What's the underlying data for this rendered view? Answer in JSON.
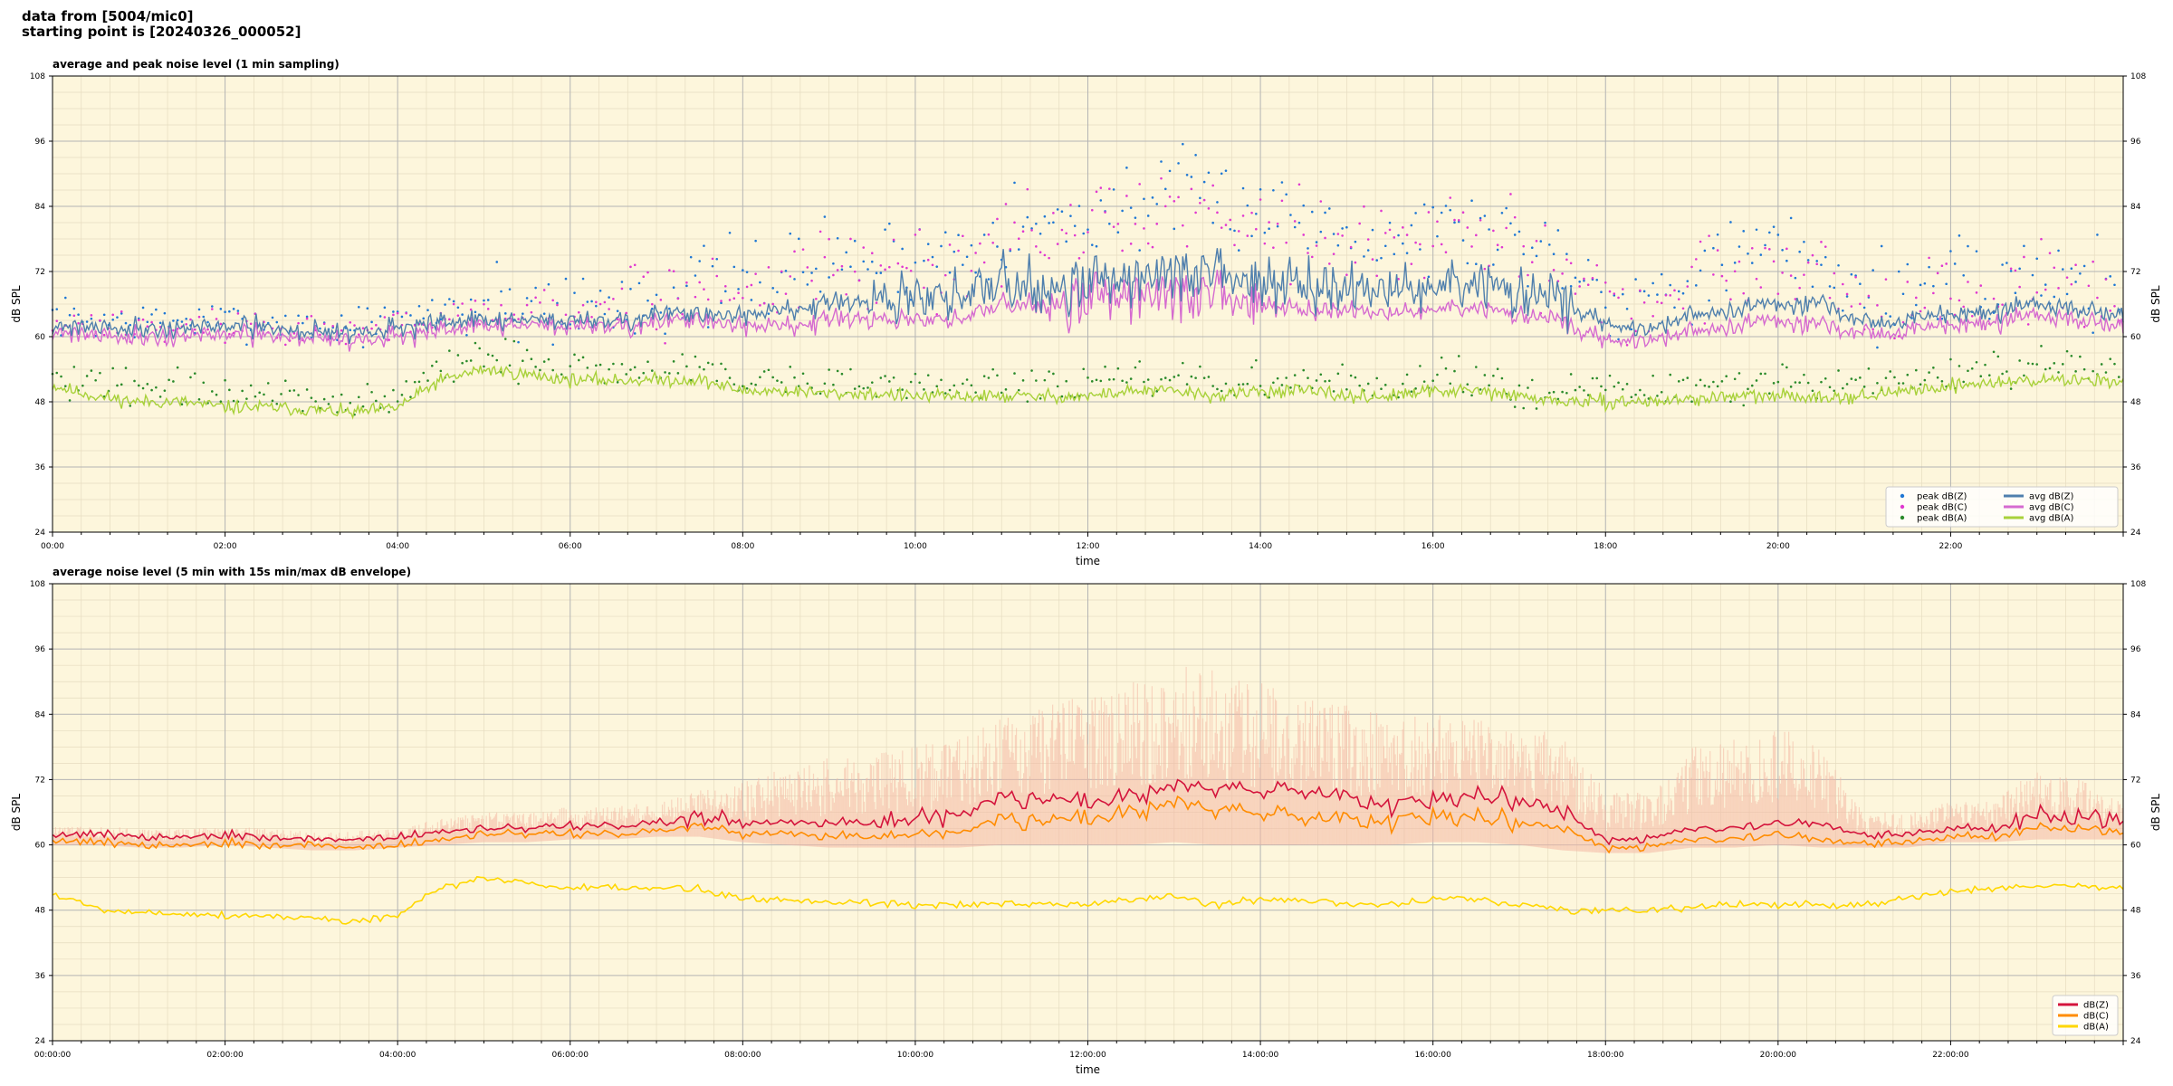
{
  "header": {
    "line1": "data from [5004/mic0]",
    "line2": "starting point is [20240326_000052]"
  },
  "colors": {
    "background": "#fdf6dc",
    "peak_z": "#1f77d4",
    "peak_c": "#e038d0",
    "peak_a": "#2a8a2a",
    "avg_z": "#4f7fad",
    "avg_c": "#d56ad0",
    "avg_a": "#a8d13a",
    "z": "#d4143c",
    "c": "#ff8c00",
    "a": "#ffd700",
    "envelope": "#f4b8a4"
  },
  "chart_data": [
    {
      "type": "line",
      "title": "average and peak noise level (1 min sampling)",
      "xlabel": "time",
      "ylabel": "dB SPL",
      "xlim": [
        0,
        24
      ],
      "ylim": [
        24,
        108
      ],
      "yticks": [
        "24",
        "36",
        "48",
        "60",
        "72",
        "84",
        "96",
        "108"
      ],
      "xtick_labels": [
        "00:00",
        "02:00",
        "04:00",
        "06:00",
        "08:00",
        "10:00",
        "12:00",
        "14:00",
        "16:00",
        "18:00",
        "20:00",
        "22:00"
      ],
      "grid": true,
      "legend_position": "lower-right",
      "legend": [
        {
          "label": "peak dB(Z)",
          "kind": "dot",
          "color": "#1f77d4"
        },
        {
          "label": "peak dB(C)",
          "kind": "dot",
          "color": "#e038d0"
        },
        {
          "label": "peak dB(A)",
          "kind": "dot",
          "color": "#2a8a2a"
        },
        {
          "label": "avg dB(Z)",
          "kind": "line",
          "color": "#4f7fad"
        },
        {
          "label": "avg dB(C)",
          "kind": "line",
          "color": "#d56ad0"
        },
        {
          "label": "avg dB(A)",
          "kind": "line",
          "color": "#a8d13a"
        }
      ],
      "time_hours": [
        0,
        0.5,
        1,
        1.5,
        2,
        2.5,
        3,
        3.5,
        4,
        4.5,
        5,
        5.5,
        6,
        6.5,
        7,
        7.5,
        8,
        8.5,
        9,
        9.5,
        10,
        10.5,
        11,
        11.5,
        12,
        12.5,
        13,
        13.5,
        14,
        14.5,
        15,
        15.5,
        16,
        16.5,
        17,
        17.5,
        18,
        18.5,
        19,
        19.5,
        20,
        20.5,
        21,
        21.5,
        22,
        22.5,
        23,
        23.5,
        24
      ],
      "series": [
        {
          "name": "avg dB(Z)",
          "values": [
            62,
            62,
            61.5,
            61.5,
            62,
            61.5,
            61,
            61,
            61.5,
            62.5,
            63,
            63,
            63,
            63,
            64,
            64,
            64,
            65,
            66,
            66,
            67,
            67,
            70,
            69,
            70,
            71,
            72,
            71,
            70,
            70,
            69,
            68,
            69,
            69,
            68,
            67,
            62,
            61,
            64,
            65,
            66,
            66,
            63,
            63,
            64,
            64,
            66,
            65,
            64
          ]
        },
        {
          "name": "avg dB(C)",
          "values": [
            61,
            60.5,
            60,
            60,
            60.5,
            60,
            60,
            59.5,
            60,
            61,
            62,
            62,
            62,
            62,
            62.5,
            63,
            62,
            62,
            63,
            63,
            63,
            63,
            66,
            66,
            67,
            68,
            68,
            67,
            66,
            65,
            65,
            64,
            65,
            65,
            64,
            63,
            59,
            59,
            61,
            62,
            63,
            62,
            61,
            61,
            62,
            62,
            64,
            63,
            62
          ]
        },
        {
          "name": "avg dB(A)",
          "values": [
            51,
            49,
            48,
            48,
            47,
            47,
            46.5,
            46,
            47,
            52,
            54,
            53,
            52,
            52,
            52,
            52,
            50,
            50,
            49.5,
            49.5,
            49,
            49,
            49,
            49,
            49,
            50,
            50,
            49,
            50,
            50,
            49,
            49,
            50,
            50,
            49,
            48,
            48,
            48,
            48.5,
            49,
            49,
            49,
            49,
            50,
            51,
            51.5,
            52,
            52,
            52
          ]
        },
        {
          "name": "peak dB(Z)",
          "values": [
            64,
            63,
            63,
            63,
            63,
            63,
            62,
            62,
            63,
            65,
            66,
            66,
            66,
            66,
            68,
            69,
            70,
            72,
            74,
            74,
            75,
            76,
            80,
            80,
            82,
            84,
            86,
            85,
            84,
            82,
            80,
            78,
            80,
            80,
            78,
            76,
            68,
            67,
            72,
            74,
            76,
            74,
            68,
            68,
            69,
            69,
            72,
            70,
            69
          ]
        },
        {
          "name": "peak dB(C)",
          "values": [
            63,
            62,
            62,
            62,
            62,
            62,
            61,
            61,
            62,
            64,
            65,
            65,
            65,
            65,
            67,
            68,
            69,
            71,
            72,
            72,
            73,
            74,
            78,
            78,
            80,
            82,
            84,
            83,
            82,
            80,
            78,
            76,
            78,
            78,
            76,
            74,
            66,
            65,
            70,
            72,
            74,
            72,
            66,
            66,
            67,
            67,
            70,
            68,
            67
          ]
        },
        {
          "name": "peak dB(A)",
          "values": [
            53,
            51,
            50,
            50,
            49,
            49,
            48.5,
            48,
            49,
            54,
            56,
            55,
            54,
            54,
            54,
            54,
            52,
            52,
            51.5,
            51.5,
            51,
            51,
            51,
            51,
            51,
            52,
            52,
            51,
            52,
            52,
            51,
            51,
            52,
            52,
            51,
            50,
            50,
            50,
            50.5,
            51,
            51,
            51,
            51,
            52,
            53,
            53.5,
            54,
            54,
            54
          ]
        }
      ]
    },
    {
      "type": "line",
      "title": "average noise level (5 min with 15s min/max dB envelope)",
      "xlabel": "time",
      "ylabel": "dB SPL",
      "xlim": [
        0,
        24
      ],
      "ylim": [
        24,
        108
      ],
      "yticks": [
        "24",
        "36",
        "48",
        "60",
        "72",
        "84",
        "96",
        "108"
      ],
      "xtick_labels": [
        "00:00:00",
        "02:00:00",
        "04:00:00",
        "06:00:00",
        "08:00:00",
        "10:00:00",
        "12:00:00",
        "14:00:00",
        "16:00:00",
        "18:00:00",
        "20:00:00",
        "22:00:00"
      ],
      "grid": true,
      "legend_position": "lower-right",
      "legend": [
        {
          "label": "dB(Z)",
          "kind": "line",
          "color": "#d4143c"
        },
        {
          "label": "dB(C)",
          "kind": "line",
          "color": "#ff8c00"
        },
        {
          "label": "dB(A)",
          "kind": "line",
          "color": "#ffd700"
        }
      ],
      "time_hours": [
        0,
        0.5,
        1,
        1.5,
        2,
        2.5,
        3,
        3.5,
        4,
        4.5,
        5,
        5.5,
        6,
        6.5,
        7,
        7.5,
        8,
        8.5,
        9,
        9.5,
        10,
        10.5,
        11,
        11.5,
        12,
        12.5,
        13,
        13.5,
        14,
        14.5,
        15,
        15.5,
        16,
        16.5,
        17,
        17.5,
        18,
        18.5,
        19,
        19.5,
        20,
        20.5,
        21,
        21.5,
        22,
        22.5,
        23,
        23.5,
        24
      ],
      "series": [
        {
          "name": "dB(Z)",
          "values": [
            62,
            62,
            61.5,
            61.5,
            62,
            61.5,
            61,
            61,
            61.5,
            62.5,
            63,
            63,
            63.5,
            63.5,
            64,
            65,
            64,
            64,
            64,
            64,
            65,
            65,
            69,
            68,
            68,
            69,
            71,
            71,
            70,
            70,
            69,
            67,
            68,
            69,
            68,
            66,
            61,
            61,
            63,
            63,
            64,
            64,
            62,
            62,
            63,
            63,
            65,
            65,
            64
          ]
        },
        {
          "name": "dB(C)",
          "values": [
            61,
            60.5,
            60,
            60,
            60.5,
            60,
            60,
            59.5,
            60,
            61,
            62,
            62,
            62,
            62,
            62.5,
            63.5,
            62,
            62,
            61.5,
            61.5,
            62,
            62,
            65,
            64,
            65,
            66,
            68,
            67,
            66,
            65,
            65,
            64,
            65,
            65,
            64,
            63,
            59.5,
            59.5,
            61,
            61,
            62,
            61,
            60.5,
            60.5,
            61.5,
            61.5,
            63,
            63,
            62
          ]
        },
        {
          "name": "dB(A)",
          "values": [
            51,
            48.5,
            47.5,
            47.5,
            47,
            47,
            46.5,
            46,
            47,
            52,
            54,
            53,
            52,
            52,
            52,
            52,
            50,
            50,
            49.5,
            49.5,
            49,
            49,
            49,
            49,
            49,
            50,
            50.5,
            49,
            50,
            50,
            49,
            49,
            50,
            50,
            49,
            48,
            48,
            48,
            48.5,
            49,
            49,
            49,
            49,
            50,
            51.5,
            52,
            52.5,
            52.5,
            52
          ]
        },
        {
          "name": "envelope min",
          "values": [
            60,
            60,
            59.5,
            59.5,
            60,
            59.5,
            59,
            59,
            59.5,
            60,
            60.5,
            60.5,
            61,
            61,
            61.5,
            61.5,
            60.5,
            60,
            59.5,
            59.5,
            59.5,
            59.5,
            60,
            60,
            60,
            60,
            60.5,
            60,
            60,
            60,
            60,
            60,
            60.5,
            60.5,
            60,
            59,
            58.5,
            58.5,
            59.5,
            59.5,
            60,
            59.5,
            59.5,
            59.5,
            60.5,
            60.5,
            61,
            61,
            61
          ]
        },
        {
          "name": "envelope max",
          "values": [
            63.5,
            63.5,
            63,
            63,
            63.5,
            63,
            62.5,
            62.5,
            63,
            65,
            66,
            66,
            67,
            67,
            68,
            70,
            72,
            74,
            76,
            77,
            78,
            80,
            84,
            86,
            88,
            90,
            93,
            92,
            90,
            88,
            86,
            84,
            84,
            84,
            82,
            80,
            70,
            70,
            78,
            80,
            82,
            78,
            66,
            66,
            68,
            68,
            74,
            72,
            68
          ]
        }
      ]
    }
  ]
}
